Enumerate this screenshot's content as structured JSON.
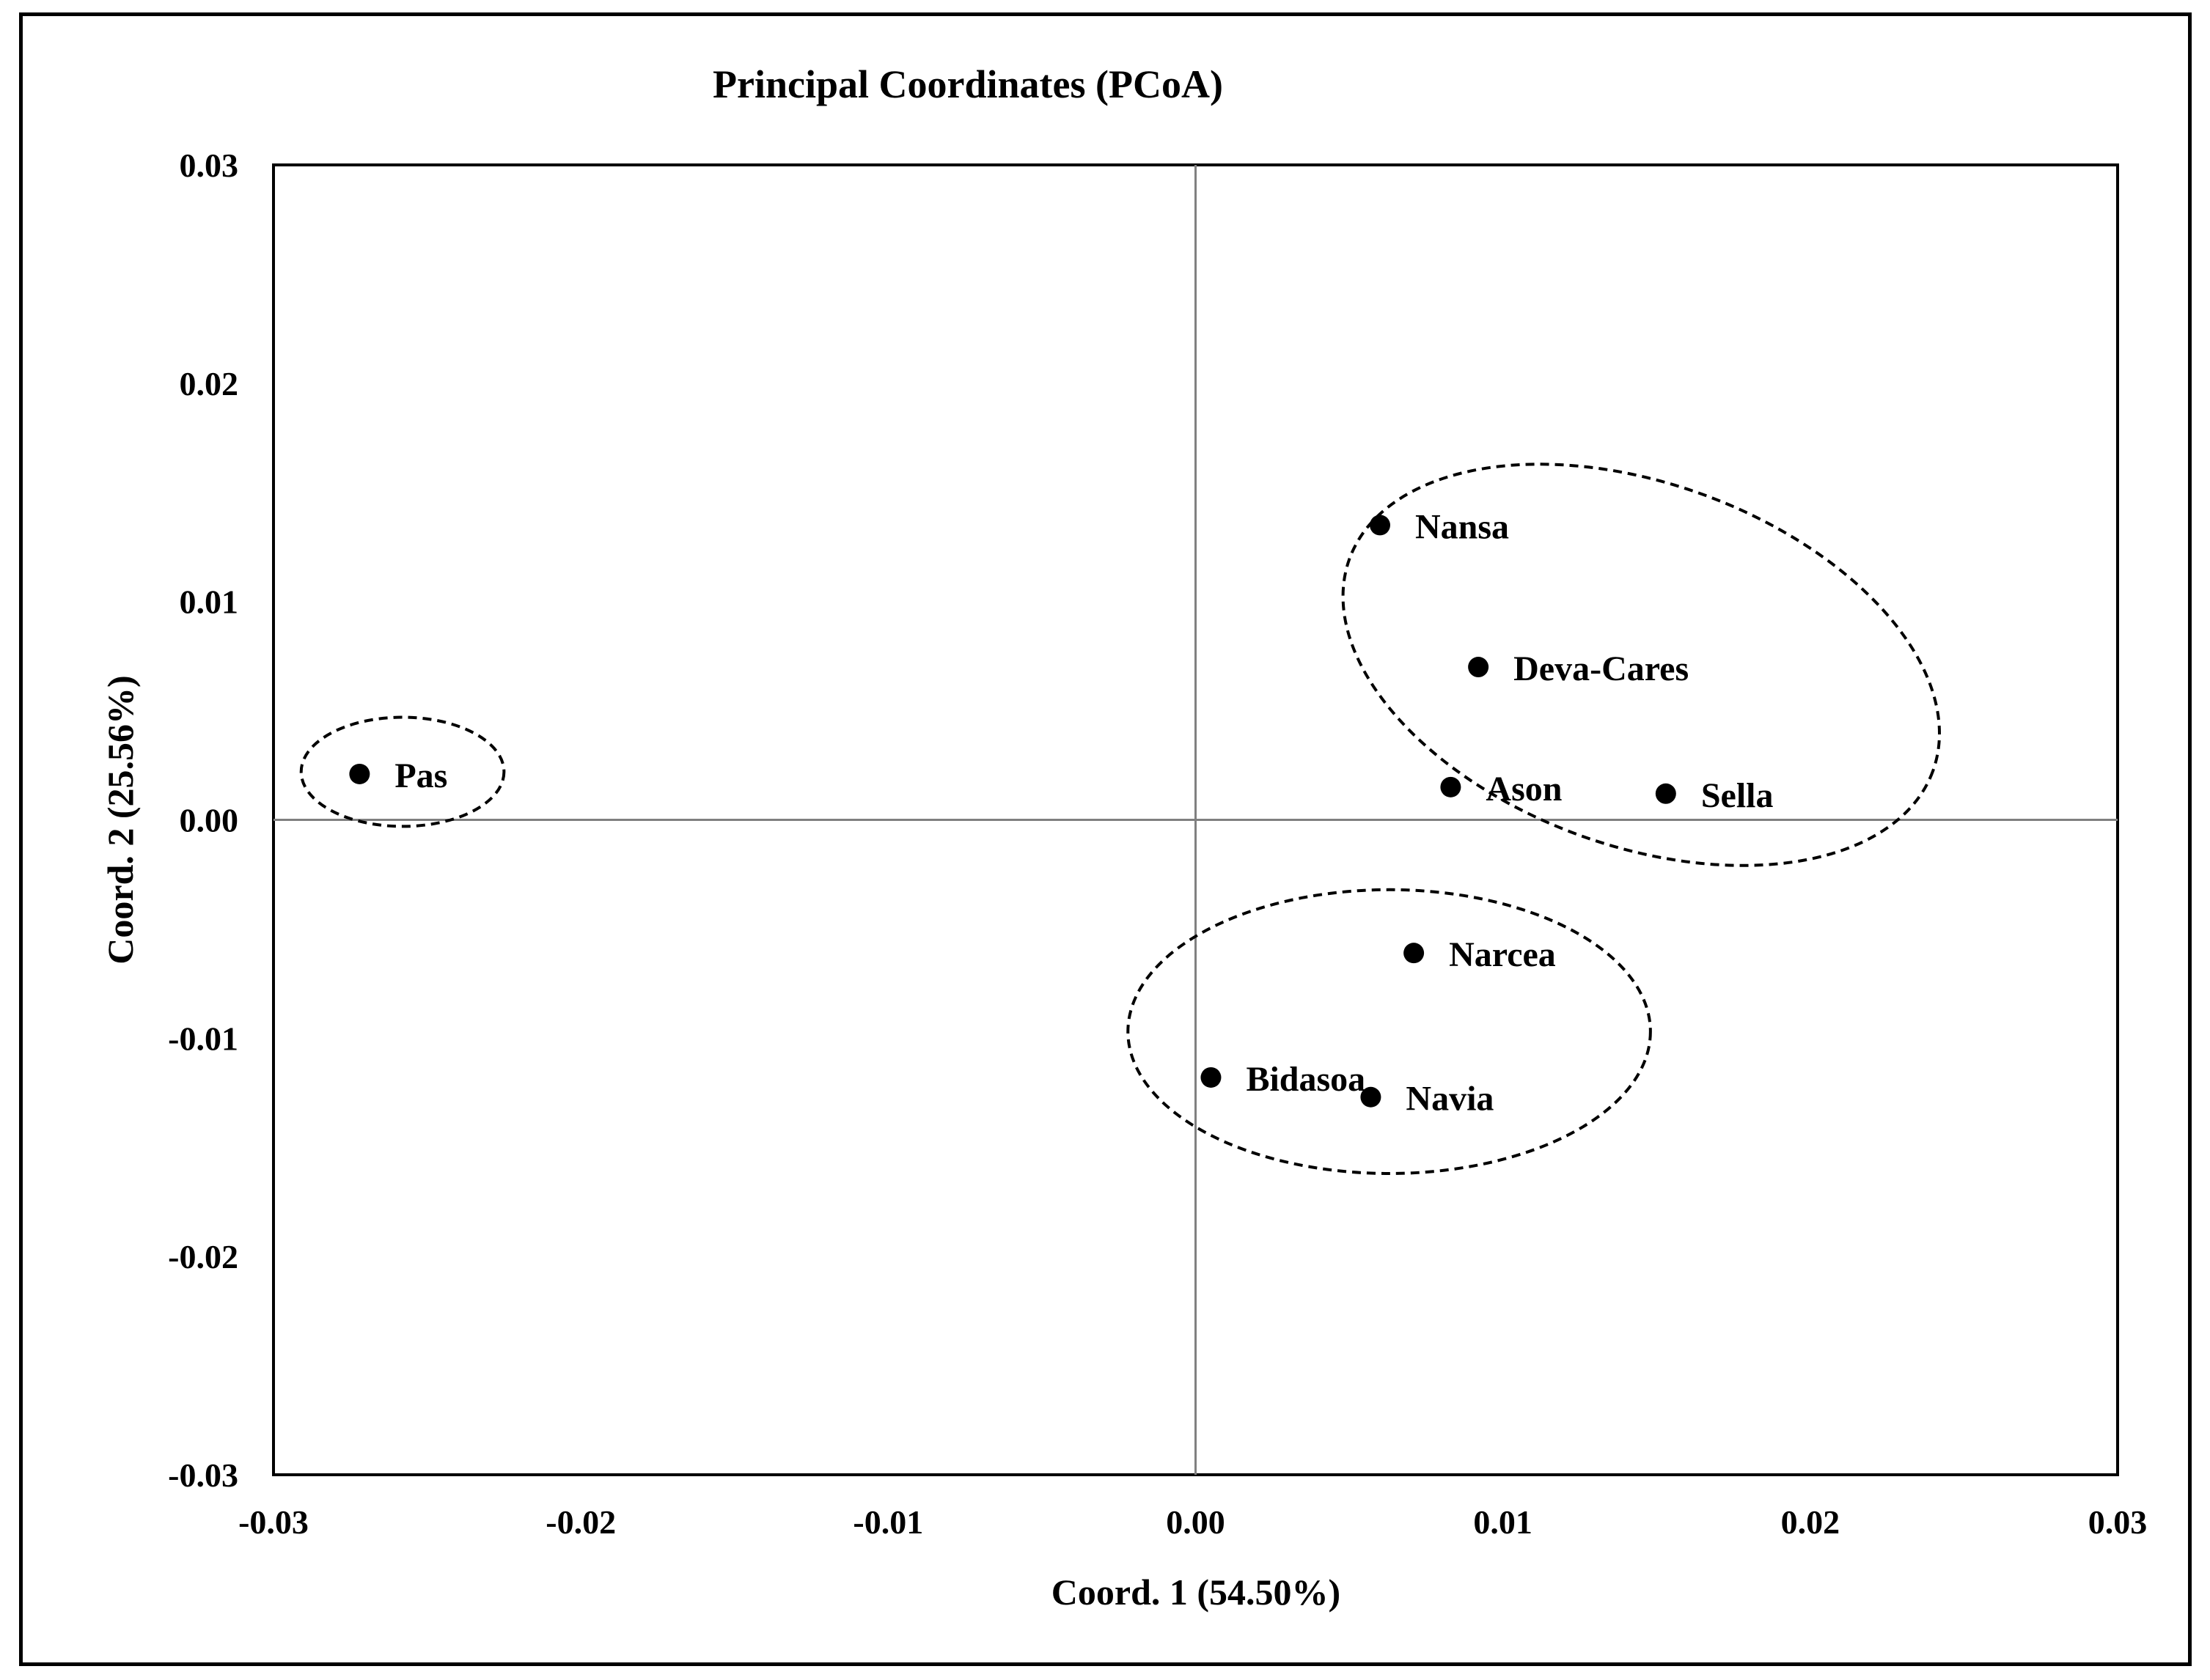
{
  "chart_data": {
    "type": "scatter",
    "title": "Principal Coordinates (PCoA)",
    "xlabel": "Coord. 1 (54.50%)",
    "ylabel": "Coord. 2 (25.56%)",
    "xlim": [
      -0.03,
      0.03
    ],
    "ylim": [
      -0.03,
      0.03
    ],
    "xticks": [
      "-0.03",
      "-0.02",
      "-0.01",
      "0.00",
      "0.01",
      "0.02",
      "0.03"
    ],
    "yticks": [
      "0.03",
      "0.02",
      "0.01",
      "0.00",
      "-0.01",
      "-0.02",
      "-0.03"
    ],
    "grid": false,
    "points": [
      {
        "label": "Pas",
        "x": -0.0272,
        "y": 0.0021
      },
      {
        "label": "Nansa",
        "x": 0.006,
        "y": 0.0135
      },
      {
        "label": "Deva-Cares",
        "x": 0.0092,
        "y": 0.007
      },
      {
        "label": "Ason",
        "x": 0.0083,
        "y": 0.0015
      },
      {
        "label": "Sella",
        "x": 0.0153,
        "y": 0.0012
      },
      {
        "label": "Narcea",
        "x": 0.0071,
        "y": -0.0061
      },
      {
        "label": "Bidasoa",
        "x": 0.0005,
        "y": -0.0118
      },
      {
        "label": "Navia",
        "x": 0.0057,
        "y": -0.0127
      }
    ],
    "groups": [
      {
        "cx": -0.0258,
        "cy": 0.0022,
        "rx": 0.0033,
        "ry": 0.0025,
        "rotate": 0
      },
      {
        "cx": 0.0145,
        "cy": 0.0071,
        "rx": 0.0101,
        "ry": 0.0083,
        "rotate": 20
      },
      {
        "cx": 0.0063,
        "cy": -0.0097,
        "rx": 0.0085,
        "ry": 0.0065,
        "rotate": 0
      }
    ]
  }
}
